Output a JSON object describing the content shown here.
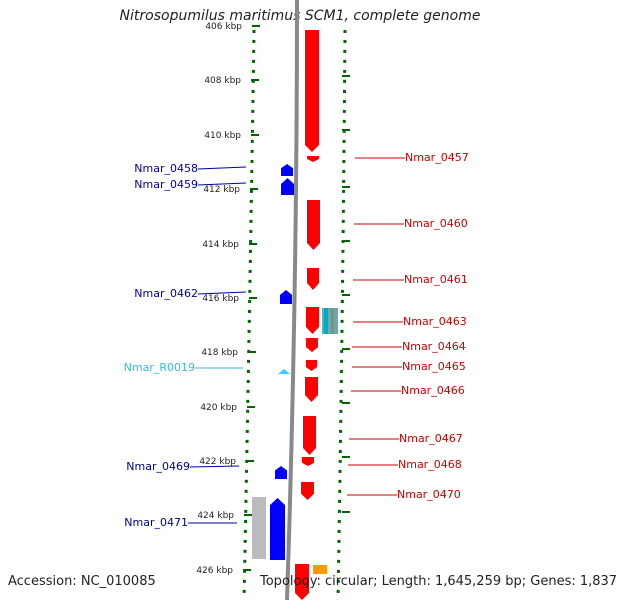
{
  "header": {
    "title": "Nitrosopumilus maritimus SCM1, complete genome"
  },
  "footer": {
    "accession": "Accession: NC_010085",
    "topology": "Topology: circular; Length: 1,645,259 bp; Genes: 1,837"
  },
  "colors": {
    "forward_gene": "#ff0000",
    "reverse_gene": "#0000ff",
    "rna": "#33ccff",
    "pseudo": "#bbbbbb",
    "other": "#ff9900",
    "tick": "#006600",
    "backbone": "#888888",
    "left_label": "#000099",
    "right_label": "#cc0000",
    "rna_label": "#33bbdd"
  },
  "scale": {
    "ticks": [
      "406 kbp",
      "408 kbp",
      "410 kbp",
      "412 kbp",
      "414 kbp",
      "416 kbp",
      "418 kbp",
      "420 kbp",
      "422 kbp",
      "424 kbp",
      "426 kbp"
    ]
  },
  "genes_left": [
    {
      "label": "Nmar_0458",
      "type": "gene"
    },
    {
      "label": "Nmar_0459",
      "type": "gene"
    },
    {
      "label": "Nmar_0462",
      "type": "gene"
    },
    {
      "label": "Nmar_R0019",
      "type": "rna"
    },
    {
      "label": "Nmar_0469",
      "type": "gene"
    },
    {
      "label": "Nmar_0471",
      "type": "gene"
    }
  ],
  "genes_right": [
    {
      "label": "Nmar_0457"
    },
    {
      "label": "Nmar_0460"
    },
    {
      "label": "Nmar_0461"
    },
    {
      "label": "Nmar_0463"
    },
    {
      "label": "Nmar_0464"
    },
    {
      "label": "Nmar_0465"
    },
    {
      "label": "Nmar_0466"
    },
    {
      "label": "Nmar_0467"
    },
    {
      "label": "Nmar_0468"
    },
    {
      "label": "Nmar_0470"
    }
  ]
}
